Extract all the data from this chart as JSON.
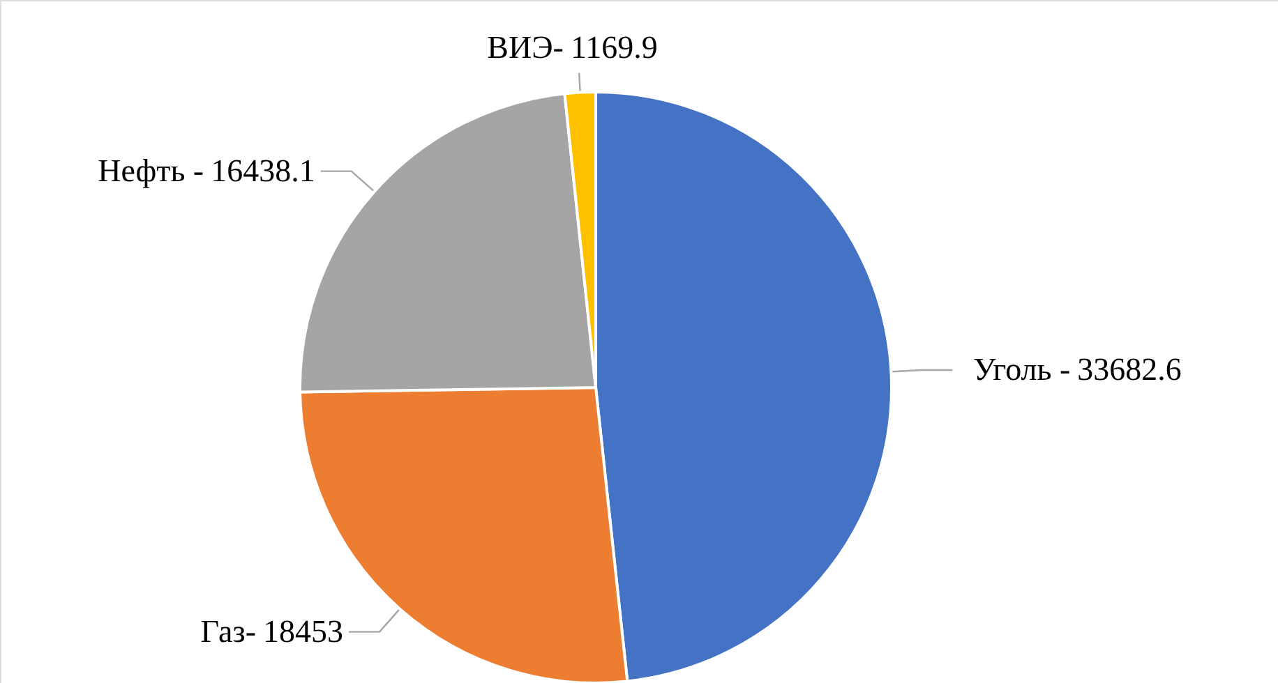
{
  "chart_data": {
    "type": "pie",
    "categories": [
      "Уголь -",
      "Газ-",
      "Нефть -",
      "ВИЭ-"
    ],
    "data_labels": true,
    "values": [
      33682.6,
      18453,
      16438.1,
      1169.9
    ],
    "colors": [
      "#4472c4",
      "#ed7d31",
      "#a5a5a5",
      "#ffc000"
    ]
  }
}
